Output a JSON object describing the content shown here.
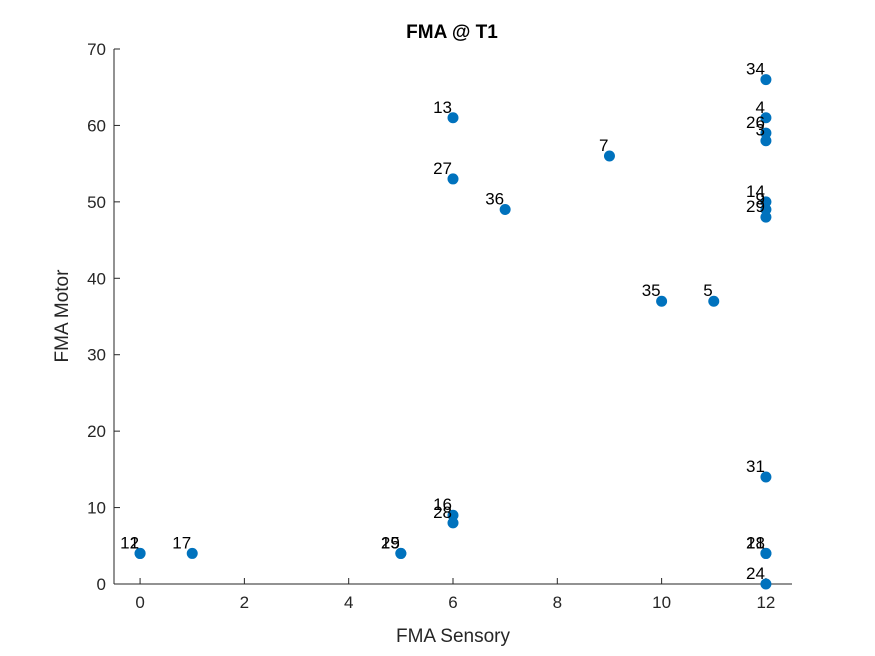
{
  "chart_data": {
    "type": "scatter",
    "title": "FMA @ T1",
    "xlabel": "FMA Sensory",
    "ylabel": "FMA Motor",
    "xlim": [
      -0.5,
      12.5
    ],
    "ylim": [
      0,
      70
    ],
    "xticks": [
      0,
      2,
      4,
      6,
      8,
      10,
      12
    ],
    "yticks": [
      0,
      10,
      20,
      30,
      40,
      50,
      60,
      70
    ],
    "grid": false,
    "marker_color": "#0072BD",
    "points": [
      {
        "x": 0,
        "y": 4,
        "label": "12"
      },
      {
        "x": 0,
        "y": 4,
        "label": "1"
      },
      {
        "x": 1,
        "y": 4,
        "label": "17"
      },
      {
        "x": 5,
        "y": 4,
        "label": "25"
      },
      {
        "x": 5,
        "y": 4,
        "label": "19"
      },
      {
        "x": 6,
        "y": 9,
        "label": "16"
      },
      {
        "x": 6,
        "y": 8,
        "label": "28"
      },
      {
        "x": 6,
        "y": 61,
        "label": "13"
      },
      {
        "x": 6,
        "y": 53,
        "label": "27"
      },
      {
        "x": 7,
        "y": 49,
        "label": "36"
      },
      {
        "x": 9,
        "y": 56,
        "label": "7"
      },
      {
        "x": 10,
        "y": 37,
        "label": "35"
      },
      {
        "x": 11,
        "y": 37,
        "label": "5"
      },
      {
        "x": 12,
        "y": 66,
        "label": "34"
      },
      {
        "x": 12,
        "y": 61,
        "label": "4"
      },
      {
        "x": 12,
        "y": 59,
        "label": "26"
      },
      {
        "x": 12,
        "y": 58,
        "label": "3"
      },
      {
        "x": 12,
        "y": 50,
        "label": "14"
      },
      {
        "x": 12,
        "y": 49,
        "label": "9"
      },
      {
        "x": 12,
        "y": 48,
        "label": "29"
      },
      {
        "x": 12,
        "y": 14,
        "label": "31"
      },
      {
        "x": 12,
        "y": 4,
        "label": "21"
      },
      {
        "x": 12,
        "y": 4,
        "label": "18"
      },
      {
        "x": 12,
        "y": 0,
        "label": "24"
      }
    ]
  }
}
